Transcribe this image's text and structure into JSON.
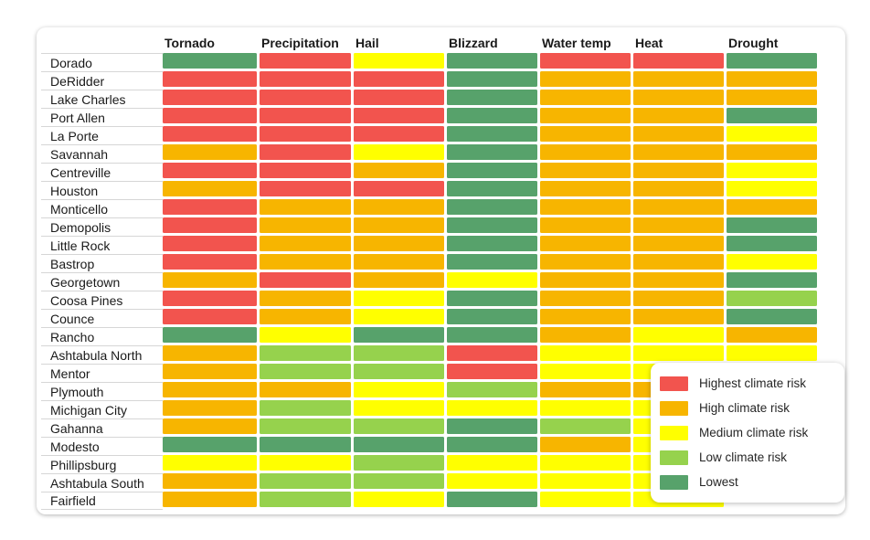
{
  "page": {
    "background": "#ffffff",
    "card_background": "#ffffff"
  },
  "chart_data": {
    "type": "heatmap",
    "title": "",
    "columns": [
      "Tornado",
      "Precipitation",
      "Hail",
      "Blizzard",
      "Water temp",
      "Heat",
      "Drought"
    ],
    "rows": [
      "Dorado",
      "DeRidder",
      "Lake Charles",
      "Port Allen",
      "La Porte",
      "Savannah",
      "Centreville",
      "Houston",
      "Monticello",
      "Demopolis",
      "Little Rock",
      "Bastrop",
      "Georgetown",
      "Coosa Pines",
      "Counce",
      "Rancho",
      "Ashtabula North",
      "Mentor",
      "Plymouth",
      "Michigan City",
      "Gahanna",
      "Modesto",
      "Phillipsburg",
      "Ashtabula South",
      "Fairfield"
    ],
    "levels": [
      {
        "key": "highest",
        "label": "Highest climate risk",
        "color": "#F2544E"
      },
      {
        "key": "high",
        "label": "High climate risk",
        "color": "#F7B500"
      },
      {
        "key": "medium",
        "label": "Medium climate risk",
        "color": "#FFFF00"
      },
      {
        "key": "low",
        "label": "Low climate risk",
        "color": "#96D24D"
      },
      {
        "key": "lowest",
        "label": "Lowest",
        "color": "#57A26B"
      }
    ],
    "legend_position": "bottom-right",
    "note_occluded": "null cells are hidden behind the legend box",
    "matrix": [
      [
        "lowest",
        "highest",
        "medium",
        "lowest",
        "highest",
        "highest",
        "lowest"
      ],
      [
        "highest",
        "highest",
        "highest",
        "lowest",
        "high",
        "high",
        "high"
      ],
      [
        "highest",
        "highest",
        "highest",
        "lowest",
        "high",
        "high",
        "high"
      ],
      [
        "highest",
        "highest",
        "highest",
        "lowest",
        "high",
        "high",
        "lowest"
      ],
      [
        "highest",
        "highest",
        "highest",
        "lowest",
        "high",
        "high",
        "medium"
      ],
      [
        "high",
        "highest",
        "medium",
        "lowest",
        "high",
        "high",
        "high"
      ],
      [
        "highest",
        "highest",
        "high",
        "lowest",
        "high",
        "high",
        "medium"
      ],
      [
        "high",
        "highest",
        "highest",
        "lowest",
        "high",
        "high",
        "medium"
      ],
      [
        "highest",
        "high",
        "high",
        "lowest",
        "high",
        "high",
        "high"
      ],
      [
        "highest",
        "high",
        "high",
        "lowest",
        "high",
        "high",
        "lowest"
      ],
      [
        "highest",
        "high",
        "high",
        "lowest",
        "high",
        "high",
        "lowest"
      ],
      [
        "highest",
        "high",
        "high",
        "lowest",
        "high",
        "high",
        "medium"
      ],
      [
        "high",
        "highest",
        "high",
        "medium",
        "high",
        "high",
        "lowest"
      ],
      [
        "highest",
        "high",
        "medium",
        "lowest",
        "high",
        "high",
        "low"
      ],
      [
        "highest",
        "high",
        "medium",
        "lowest",
        "high",
        "high",
        "lowest"
      ],
      [
        "lowest",
        "medium",
        "lowest",
        "lowest",
        "high",
        "medium",
        "high"
      ],
      [
        "high",
        "low",
        "low",
        "highest",
        "medium",
        "medium",
        "medium"
      ],
      [
        "high",
        "low",
        "low",
        "highest",
        "medium",
        "medium",
        null
      ],
      [
        "high",
        "high",
        "medium",
        "low",
        "high",
        "high",
        null
      ],
      [
        "high",
        "low",
        "medium",
        "medium",
        "medium",
        "medium",
        null
      ],
      [
        "high",
        "low",
        "low",
        "lowest",
        "low",
        "medium",
        null
      ],
      [
        "lowest",
        "lowest",
        "lowest",
        "lowest",
        "high",
        "medium",
        null
      ],
      [
        "medium",
        "medium",
        "low",
        "medium",
        "medium",
        "medium",
        null
      ],
      [
        "high",
        "low",
        "low",
        "medium",
        "medium",
        "medium",
        null
      ],
      [
        "high",
        "low",
        "medium",
        "lowest",
        "medium",
        "medium",
        null
      ]
    ]
  }
}
